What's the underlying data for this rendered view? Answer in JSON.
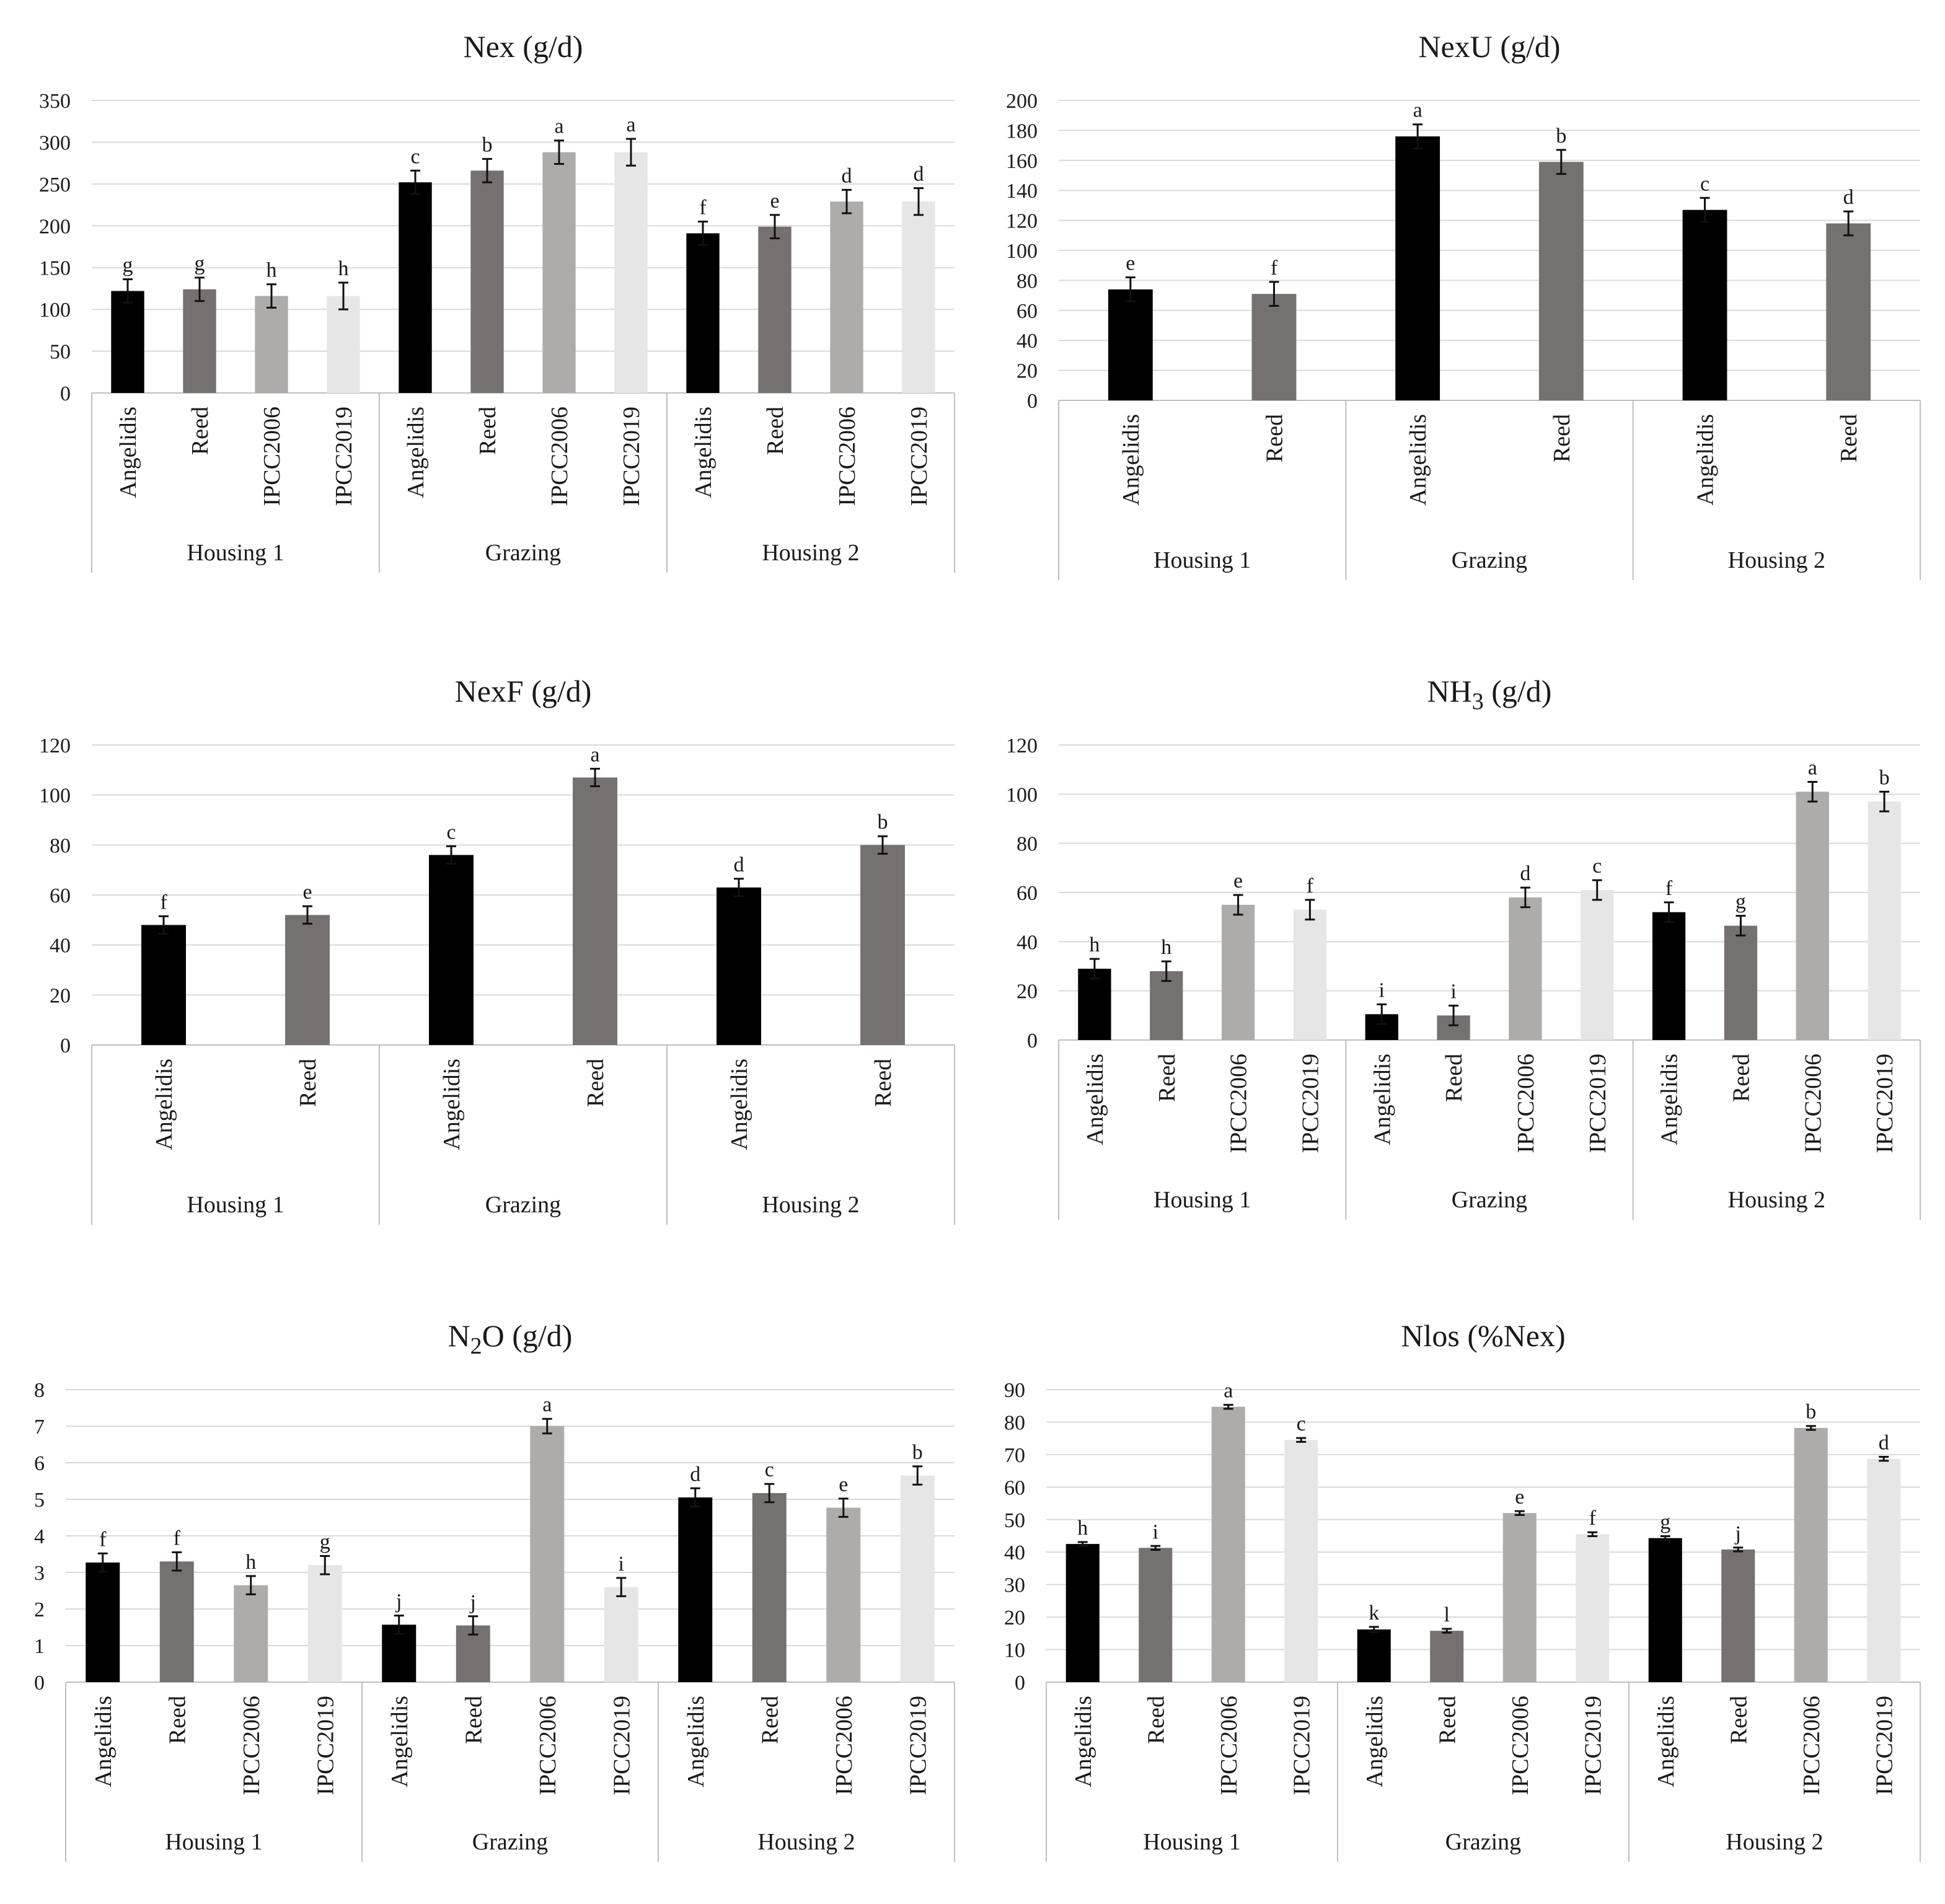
{
  "colors": {
    "Angelidis": "#000000",
    "Reed": "#767171",
    "IPCC2006": "#aeabab",
    "IPCC2019": "#e7e6e6"
  },
  "chart_data": [
    {
      "type": "bar",
      "title": "Nex (g/d)",
      "ylim": [
        0,
        350
      ],
      "yticks": [
        "0",
        "50",
        "100",
        "150",
        "200",
        "250",
        "300",
        "350"
      ],
      "groups": [
        "Housing 1",
        "Grazing",
        "Housing 2"
      ],
      "categories": [
        "Angelidis",
        "Reed",
        "IPCC2006",
        "IPCC2019"
      ],
      "bars": [
        [
          {
            "v": 122,
            "e": 14,
            "l": "g"
          },
          {
            "v": 124,
            "e": 14,
            "l": "g"
          },
          {
            "v": 116,
            "e": 14,
            "l": "h"
          },
          {
            "v": 116,
            "e": 16,
            "l": "h"
          }
        ],
        [
          {
            "v": 252,
            "e": 14,
            "l": "c"
          },
          {
            "v": 266,
            "e": 14,
            "l": "b"
          },
          {
            "v": 288,
            "e": 14,
            "l": "a"
          },
          {
            "v": 288,
            "e": 16,
            "l": "a"
          }
        ],
        [
          {
            "v": 191,
            "e": 14,
            "l": "f"
          },
          {
            "v": 199,
            "e": 14,
            "l": "e"
          },
          {
            "v": 229,
            "e": 14,
            "l": "d"
          },
          {
            "v": 229,
            "e": 16,
            "l": "d"
          }
        ]
      ]
    },
    {
      "type": "bar",
      "title": "NexU (g/d)",
      "ylim": [
        0,
        200
      ],
      "yticks": [
        "0",
        "20",
        "40",
        "60",
        "80",
        "100",
        "120",
        "140",
        "160",
        "180",
        "200"
      ],
      "groups": [
        "Housing 1",
        "Grazing",
        "Housing 2"
      ],
      "categories": [
        "Angelidis",
        "Reed"
      ],
      "bars": [
        [
          {
            "v": 74,
            "e": 8,
            "l": "e"
          },
          {
            "v": 71,
            "e": 8,
            "l": "f"
          }
        ],
        [
          {
            "v": 176,
            "e": 8,
            "l": "a"
          },
          {
            "v": 159,
            "e": 8,
            "l": "b"
          }
        ],
        [
          {
            "v": 127,
            "e": 8,
            "l": "c"
          },
          {
            "v": 118,
            "e": 8,
            "l": "d"
          }
        ]
      ]
    },
    {
      "type": "bar",
      "title": "NexF (g/d)",
      "ylim": [
        0,
        120
      ],
      "yticks": [
        "0",
        "20",
        "40",
        "60",
        "80",
        "100",
        "120"
      ],
      "groups": [
        "Housing 1",
        "Grazing",
        "Housing 2"
      ],
      "categories": [
        "Angelidis",
        "Reed"
      ],
      "bars": [
        [
          {
            "v": 48,
            "e": 3.5,
            "l": "f"
          },
          {
            "v": 52,
            "e": 3.5,
            "l": "e"
          }
        ],
        [
          {
            "v": 76,
            "e": 3.5,
            "l": "c"
          },
          {
            "v": 107,
            "e": 3.5,
            "l": "a"
          }
        ],
        [
          {
            "v": 63,
            "e": 3.5,
            "l": "d"
          },
          {
            "v": 80,
            "e": 3.5,
            "l": "b"
          }
        ]
      ]
    },
    {
      "type": "bar",
      "title": "NH",
      "title_sub": "3",
      "title_suffix": " (g/d)",
      "ylim": [
        0,
        120
      ],
      "yticks": [
        "0",
        "20",
        "40",
        "60",
        "80",
        "100",
        "120"
      ],
      "groups": [
        "Housing 1",
        "Grazing",
        "Housing 2"
      ],
      "categories": [
        "Angelidis",
        "Reed",
        "IPCC2006",
        "IPCC2019"
      ],
      "bars": [
        [
          {
            "v": 29,
            "e": 4,
            "l": "h"
          },
          {
            "v": 28,
            "e": 4,
            "l": "h"
          },
          {
            "v": 55,
            "e": 4,
            "l": "e"
          },
          {
            "v": 53,
            "e": 4,
            "l": "f"
          }
        ],
        [
          {
            "v": 10.5,
            "e": 4,
            "l": "i"
          },
          {
            "v": 10,
            "e": 4,
            "l": "i"
          },
          {
            "v": 58,
            "e": 4,
            "l": "d"
          },
          {
            "v": 61,
            "e": 4,
            "l": "c"
          }
        ],
        [
          {
            "v": 52,
            "e": 4,
            "l": "f"
          },
          {
            "v": 46.5,
            "e": 4,
            "l": "g"
          },
          {
            "v": 101,
            "e": 4,
            "l": "a"
          },
          {
            "v": 97,
            "e": 4,
            "l": "b"
          }
        ]
      ]
    },
    {
      "type": "bar",
      "title": "N",
      "title_sub": "2",
      "title_suffix": "O (g/d)",
      "ylim": [
        0,
        8
      ],
      "yticks": [
        "0",
        "1",
        "2",
        "3",
        "4",
        "5",
        "6",
        "7",
        "8"
      ],
      "groups": [
        "Housing 1",
        "Grazing",
        "Housing 2"
      ],
      "categories": [
        "Angelidis",
        "Reed",
        "IPCC2006",
        "IPCC2019"
      ],
      "bars": [
        [
          {
            "v": 3.27,
            "e": 0.25,
            "l": "f"
          },
          {
            "v": 3.3,
            "e": 0.25,
            "l": "f"
          },
          {
            "v": 2.65,
            "e": 0.25,
            "l": "h"
          },
          {
            "v": 3.2,
            "e": 0.25,
            "l": "g"
          }
        ],
        [
          {
            "v": 1.57,
            "e": 0.25,
            "l": "j"
          },
          {
            "v": 1.55,
            "e": 0.25,
            "l": "j"
          },
          {
            "v": 7.0,
            "e": 0.2,
            "l": "a"
          },
          {
            "v": 2.6,
            "e": 0.25,
            "l": "i"
          }
        ],
        [
          {
            "v": 5.05,
            "e": 0.25,
            "l": "d"
          },
          {
            "v": 5.17,
            "e": 0.25,
            "l": "c"
          },
          {
            "v": 4.77,
            "e": 0.25,
            "l": "e"
          },
          {
            "v": 5.65,
            "e": 0.25,
            "l": "b"
          }
        ]
      ]
    },
    {
      "type": "bar",
      "title": "Nlos (%Nex)",
      "ylim": [
        0,
        90
      ],
      "yticks": [
        "0",
        "10",
        "20",
        "30",
        "40",
        "50",
        "60",
        "70",
        "80",
        "90"
      ],
      "groups": [
        "Housing 1",
        "Grazing",
        "Housing 2"
      ],
      "categories": [
        "Angelidis",
        "Reed",
        "IPCC2006",
        "IPCC2019"
      ],
      "bars": [
        [
          {
            "v": 42.5,
            "e": 0.6,
            "l": "h"
          },
          {
            "v": 41.3,
            "e": 0.6,
            "l": "i"
          },
          {
            "v": 84.7,
            "e": 0.6,
            "l": "a"
          },
          {
            "v": 74.5,
            "e": 0.6,
            "l": "c"
          }
        ],
        [
          {
            "v": 16.2,
            "e": 0.8,
            "l": "k"
          },
          {
            "v": 15.8,
            "e": 0.6,
            "l": "l"
          },
          {
            "v": 52,
            "e": 0.6,
            "l": "e"
          },
          {
            "v": 45.5,
            "e": 0.6,
            "l": "f"
          }
        ],
        [
          {
            "v": 44.3,
            "e": 0.6,
            "l": "g"
          },
          {
            "v": 40.8,
            "e": 0.6,
            "l": "j"
          },
          {
            "v": 78.2,
            "e": 0.6,
            "l": "b"
          },
          {
            "v": 68.7,
            "e": 0.6,
            "l": "d"
          }
        ]
      ]
    }
  ]
}
